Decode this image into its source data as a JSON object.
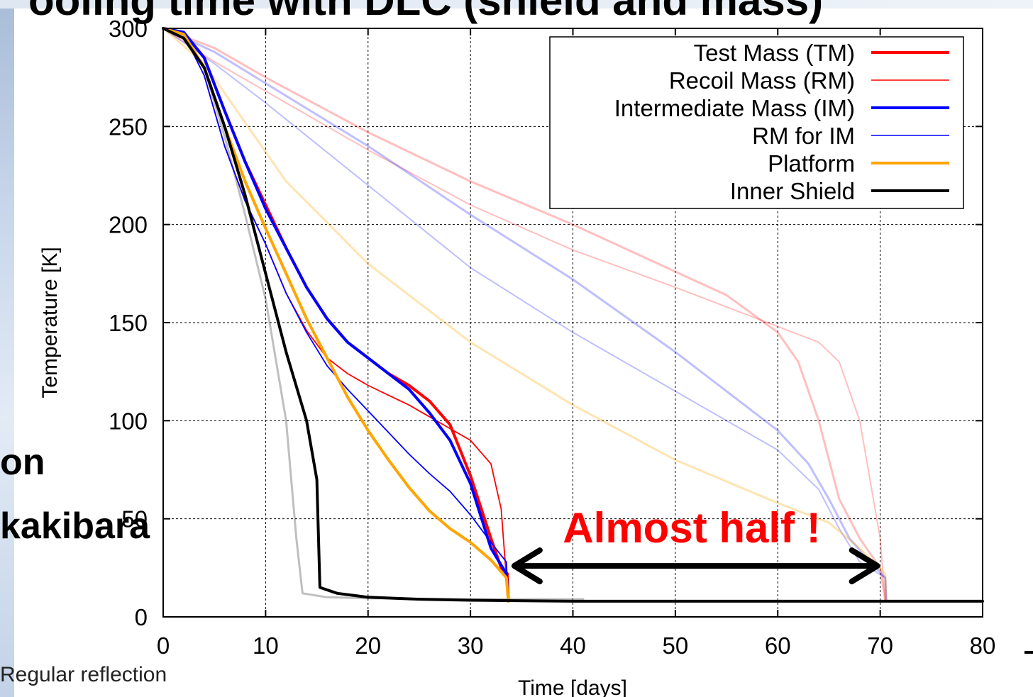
{
  "slide": {
    "title": "ooling time with DLC (shield and mass)",
    "side_text_1": "on",
    "side_text_2": "kakibara",
    "footer_caption": "Regular reflection"
  },
  "chart_data": {
    "type": "line",
    "title": "",
    "xlabel": "Time [days]",
    "ylabel": "Temperature [K]",
    "xlim": [
      0,
      80
    ],
    "ylim": [
      0,
      300
    ],
    "xticks": [
      0,
      10,
      20,
      30,
      40,
      50,
      60,
      70,
      80
    ],
    "yticks": [
      0,
      50,
      100,
      150,
      200,
      250,
      300
    ],
    "grid": true,
    "legend_position": "top-right",
    "legend": [
      {
        "label": "Test Mass (TM)",
        "color": "#ff0000",
        "width": "thick"
      },
      {
        "label": "Recoil Mass (RM)",
        "color": "#ff0000",
        "width": "thin"
      },
      {
        "label": "Intermediate Mass (IM)",
        "color": "#0000ff",
        "width": "thick"
      },
      {
        "label": "RM for IM",
        "color": "#0000ff",
        "width": "thin"
      },
      {
        "label": "Platform",
        "color": "#ffa500",
        "width": "thick"
      },
      {
        "label": "Inner Shield",
        "color": "#000000",
        "width": "thick"
      }
    ],
    "series": [
      {
        "name": "Test Mass (TM)",
        "color": "#ff0000",
        "stroke": 4,
        "opacity": 1,
        "points": [
          [
            0,
            300
          ],
          [
            2,
            298
          ],
          [
            4,
            285
          ],
          [
            6,
            258
          ],
          [
            8,
            232
          ],
          [
            10,
            210
          ],
          [
            12,
            188
          ],
          [
            14,
            168
          ],
          [
            16,
            152
          ],
          [
            18,
            140
          ],
          [
            20,
            132
          ],
          [
            22,
            124
          ],
          [
            24,
            118
          ],
          [
            26,
            110
          ],
          [
            28,
            98
          ],
          [
            30,
            72
          ],
          [
            32,
            40
          ],
          [
            33,
            25
          ],
          [
            33.6,
            22
          ],
          [
            33.7,
            8
          ]
        ]
      },
      {
        "name": "Recoil Mass (RM)",
        "color": "#ff0000",
        "stroke": 1.8,
        "opacity": 1,
        "points": [
          [
            0,
            300
          ],
          [
            2,
            297
          ],
          [
            4,
            276
          ],
          [
            6,
            240
          ],
          [
            8,
            212
          ],
          [
            10,
            190
          ],
          [
            12,
            165
          ],
          [
            14,
            146
          ],
          [
            16,
            132
          ],
          [
            18,
            124
          ],
          [
            20,
            118
          ],
          [
            22,
            113
          ],
          [
            24,
            108
          ],
          [
            26,
            102
          ],
          [
            28,
            96
          ],
          [
            30,
            90
          ],
          [
            32,
            78
          ],
          [
            33,
            55
          ],
          [
            33.5,
            20
          ],
          [
            33.7,
            8
          ]
        ]
      },
      {
        "name": "Intermediate Mass (IM)",
        "color": "#0000ff",
        "stroke": 4,
        "opacity": 1,
        "points": [
          [
            0,
            300
          ],
          [
            2,
            298
          ],
          [
            4,
            285
          ],
          [
            6,
            258
          ],
          [
            8,
            232
          ],
          [
            10,
            208
          ],
          [
            12,
            188
          ],
          [
            14,
            168
          ],
          [
            16,
            152
          ],
          [
            18,
            140
          ],
          [
            20,
            132
          ],
          [
            22,
            124
          ],
          [
            24,
            116
          ],
          [
            26,
            104
          ],
          [
            28,
            90
          ],
          [
            30,
            68
          ],
          [
            32,
            35
          ],
          [
            33.5,
            22
          ],
          [
            33.7,
            8
          ]
        ]
      },
      {
        "name": "RM for IM",
        "color": "#0000ff",
        "stroke": 1.8,
        "opacity": 1,
        "points": [
          [
            0,
            300
          ],
          [
            2,
            297
          ],
          [
            4,
            276
          ],
          [
            6,
            240
          ],
          [
            8,
            212
          ],
          [
            10,
            190
          ],
          [
            12,
            165
          ],
          [
            14,
            145
          ],
          [
            16,
            128
          ],
          [
            18,
            116
          ],
          [
            20,
            105
          ],
          [
            22,
            94
          ],
          [
            24,
            83
          ],
          [
            26,
            73
          ],
          [
            28,
            64
          ],
          [
            30,
            52
          ],
          [
            32,
            38
          ],
          [
            33.5,
            28
          ],
          [
            33.7,
            8
          ]
        ]
      },
      {
        "name": "Platform",
        "color": "#ffa500",
        "stroke": 4,
        "opacity": 1,
        "points": [
          [
            0,
            300
          ],
          [
            2,
            297
          ],
          [
            4,
            280
          ],
          [
            6,
            250
          ],
          [
            8,
            222
          ],
          [
            10,
            198
          ],
          [
            12,
            175
          ],
          [
            14,
            152
          ],
          [
            16,
            132
          ],
          [
            18,
            112
          ],
          [
            20,
            95
          ],
          [
            22,
            80
          ],
          [
            24,
            66
          ],
          [
            26,
            54
          ],
          [
            28,
            45
          ],
          [
            30,
            38
          ],
          [
            32,
            29
          ],
          [
            33.5,
            20
          ],
          [
            33.7,
            8
          ]
        ]
      },
      {
        "name": "Inner Shield",
        "color": "#000000",
        "stroke": 4,
        "opacity": 1,
        "points": [
          [
            0,
            300
          ],
          [
            2,
            295
          ],
          [
            4,
            280
          ],
          [
            6,
            250
          ],
          [
            8,
            215
          ],
          [
            10,
            175
          ],
          [
            12,
            135
          ],
          [
            14,
            100
          ],
          [
            15,
            70
          ],
          [
            15.3,
            15
          ],
          [
            17,
            12
          ],
          [
            20,
            10
          ],
          [
            25,
            9
          ],
          [
            30,
            8.5
          ],
          [
            40,
            8
          ],
          [
            80,
            8
          ]
        ]
      },
      {
        "name": "",
        "color": "#ff0000",
        "stroke": 3,
        "opacity": 0.25,
        "points": [
          [
            0,
            300
          ],
          [
            5,
            290
          ],
          [
            10,
            275
          ],
          [
            20,
            247
          ],
          [
            30,
            222
          ],
          [
            40,
            200
          ],
          [
            50,
            176
          ],
          [
            55,
            164
          ],
          [
            60,
            145
          ],
          [
            62,
            130
          ],
          [
            64,
            100
          ],
          [
            66,
            60
          ],
          [
            68,
            40
          ],
          [
            70,
            25
          ],
          [
            70.5,
            8
          ]
        ]
      },
      {
        "name": "",
        "color": "#ff0000",
        "stroke": 2,
        "opacity": 0.25,
        "points": [
          [
            0,
            300
          ],
          [
            5,
            283
          ],
          [
            10,
            268
          ],
          [
            20,
            238
          ],
          [
            30,
            210
          ],
          [
            40,
            187
          ],
          [
            50,
            168
          ],
          [
            55,
            158
          ],
          [
            60,
            148
          ],
          [
            64,
            140
          ],
          [
            66,
            130
          ],
          [
            68,
            100
          ],
          [
            69,
            70
          ],
          [
            70,
            40
          ],
          [
            70.5,
            8
          ]
        ]
      },
      {
        "name": "",
        "color": "#0000ff",
        "stroke": 3,
        "opacity": 0.25,
        "points": [
          [
            0,
            300
          ],
          [
            5,
            288
          ],
          [
            10,
            272
          ],
          [
            20,
            240
          ],
          [
            30,
            205
          ],
          [
            40,
            172
          ],
          [
            50,
            135
          ],
          [
            55,
            115
          ],
          [
            60,
            95
          ],
          [
            63,
            78
          ],
          [
            65,
            60
          ],
          [
            67,
            40
          ],
          [
            69,
            28
          ],
          [
            70.5,
            20
          ],
          [
            70.6,
            8
          ]
        ]
      },
      {
        "name": "",
        "color": "#0000ff",
        "stroke": 2,
        "opacity": 0.25,
        "points": [
          [
            0,
            300
          ],
          [
            5,
            282
          ],
          [
            10,
            262
          ],
          [
            20,
            220
          ],
          [
            30,
            178
          ],
          [
            40,
            145
          ],
          [
            50,
            115
          ],
          [
            55,
            100
          ],
          [
            60,
            85
          ],
          [
            64,
            65
          ],
          [
            66,
            45
          ],
          [
            68,
            28
          ],
          [
            70.5,
            20
          ],
          [
            70.6,
            8
          ]
        ]
      },
      {
        "name": "",
        "color": "#ffa500",
        "stroke": 3,
        "opacity": 0.3,
        "points": [
          [
            0,
            300
          ],
          [
            4,
            282
          ],
          [
            8,
            252
          ],
          [
            12,
            222
          ],
          [
            20,
            180
          ],
          [
            30,
            140
          ],
          [
            40,
            108
          ],
          [
            50,
            80
          ],
          [
            60,
            58
          ],
          [
            65,
            48
          ],
          [
            68,
            35
          ],
          [
            70.5,
            22
          ],
          [
            70.6,
            8
          ]
        ]
      },
      {
        "name": "",
        "color": "#000000",
        "stroke": 3,
        "opacity": 0.25,
        "points": [
          [
            0,
            300
          ],
          [
            2,
            295
          ],
          [
            4,
            280
          ],
          [
            6,
            245
          ],
          [
            8,
            205
          ],
          [
            10,
            162
          ],
          [
            12,
            100
          ],
          [
            13,
            40
          ],
          [
            13.6,
            12
          ],
          [
            16,
            10
          ],
          [
            20,
            9.5
          ],
          [
            30,
            9
          ],
          [
            41,
            9
          ]
        ]
      }
    ],
    "annotation": {
      "text": "Almost half !",
      "color": "#ff0000",
      "arrow_from_x": 34,
      "arrow_to_x": 70,
      "arrow_y": 26
    }
  }
}
